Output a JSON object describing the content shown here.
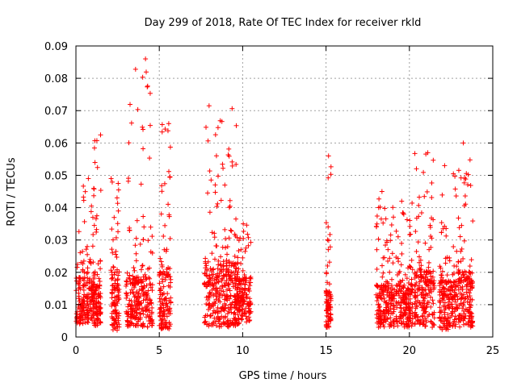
{
  "chart_data": {
    "type": "scatter",
    "title": "Day 299 of 2018, Rate Of TEC Index for receiver rkld",
    "xlabel": "GPS time / hours",
    "ylabel": "ROTI / TECUs",
    "xlim": [
      0,
      25
    ],
    "ylim": [
      0,
      0.09
    ],
    "x_ticks": [
      "0",
      "5",
      "10",
      "15",
      "20",
      "25"
    ],
    "y_ticks": [
      "0",
      "0.01",
      "0.02",
      "0.03",
      "0.04",
      "0.05",
      "0.06",
      "0.07",
      "0.08",
      "0.09"
    ],
    "grid": true,
    "marker": "plus",
    "color": "#ff0000",
    "clusters": [
      {
        "x_range": [
          0.0,
          1.1
        ],
        "base": [
          0.004,
          0.018
        ],
        "max": 0.049
      },
      {
        "x_range": [
          1.0,
          1.5
        ],
        "base": [
          0.003,
          0.016
        ],
        "max": 0.0625
      },
      {
        "x_range": [
          2.1,
          2.6
        ],
        "base": [
          0.002,
          0.02
        ],
        "max": 0.049
      },
      {
        "x_range": [
          3.0,
          4.6
        ],
        "base": [
          0.003,
          0.018
        ],
        "max": 0.086
      },
      {
        "x_range": [
          5.0,
          5.7
        ],
        "base": [
          0.002,
          0.02
        ],
        "max": 0.066
      },
      {
        "x_range": [
          7.7,
          9.8
        ],
        "base": [
          0.003,
          0.022
        ],
        "max": 0.0715
      },
      {
        "x_range": [
          9.5,
          10.5
        ],
        "base": [
          0.004,
          0.018
        ],
        "max": 0.035
      },
      {
        "x_range": [
          15.0,
          15.3
        ],
        "base": [
          0.003,
          0.014
        ],
        "max": 0.056
      },
      {
        "x_range": [
          18.0,
          19.1
        ],
        "base": [
          0.003,
          0.016
        ],
        "max": 0.045
      },
      {
        "x_range": [
          19.2,
          20.2
        ],
        "base": [
          0.003,
          0.016
        ],
        "max": 0.042
      },
      {
        "x_range": [
          20.3,
          21.5
        ],
        "base": [
          0.003,
          0.02
        ],
        "max": 0.057
      },
      {
        "x_range": [
          21.8,
          22.8
        ],
        "base": [
          0.002,
          0.017
        ],
        "max": 0.053
      },
      {
        "x_range": [
          22.8,
          23.8
        ],
        "base": [
          0.003,
          0.02
        ],
        "max": 0.06
      }
    ]
  }
}
